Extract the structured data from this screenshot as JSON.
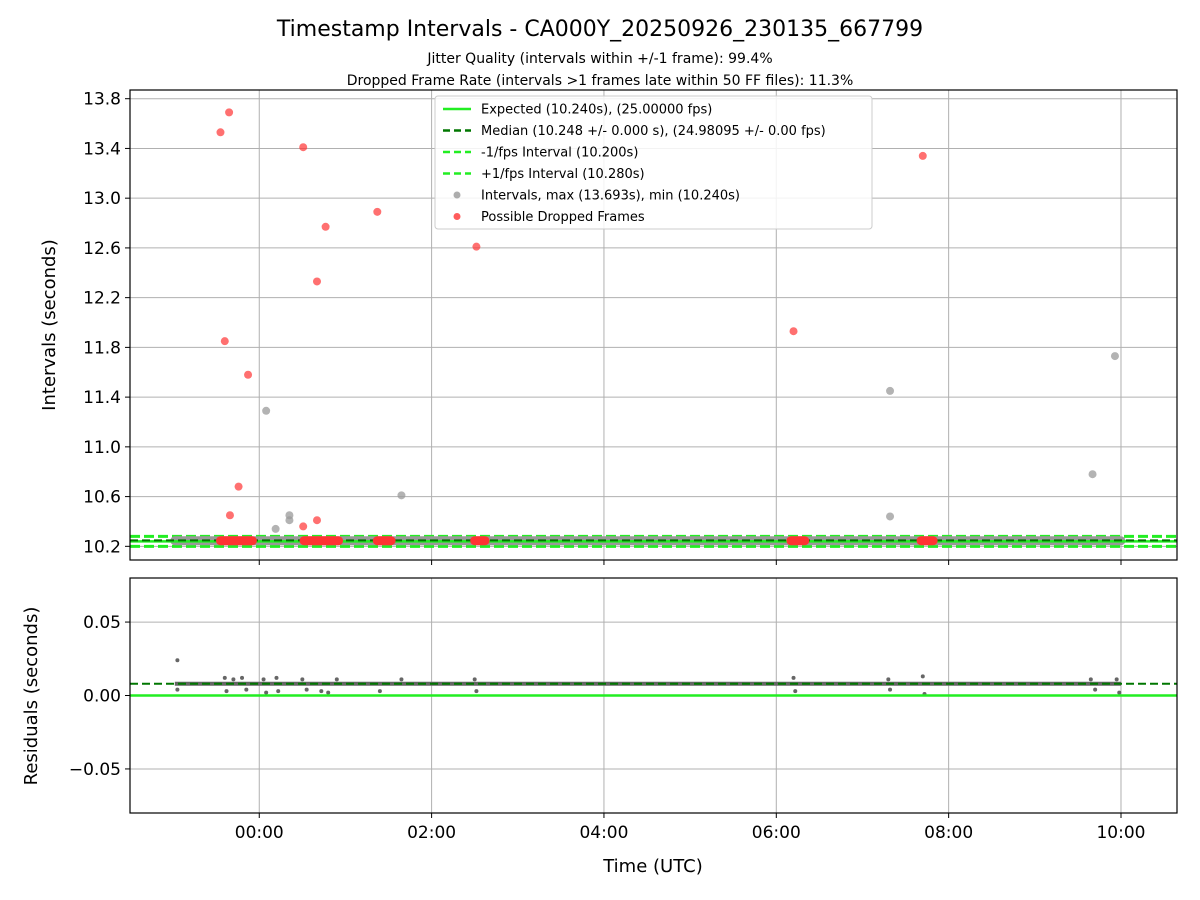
{
  "title": "Timestamp Intervals - CA000Y_20250926_230135_667799",
  "subtitle_jitter": "Jitter Quality (intervals within +/-1 frame): 99.4%",
  "subtitle_dropped": "Dropped Frame Rate (intervals >1 frames late within 50 FF files): 11.3%",
  "colors": {
    "expected": "#22ee22",
    "median": "#007700",
    "fps_band": "#22ee22",
    "intervals": "#999999",
    "dropped": "#ff3333",
    "residuals": "#666666"
  },
  "chart_data": [
    {
      "type": "scatter",
      "xlabel": "",
      "ylabel": "Intervals (seconds)",
      "x_unit": "hours_utc",
      "xlim": [
        -1.5,
        10.65
      ],
      "ylim": [
        10.09,
        13.87
      ],
      "yticks": [
        10.2,
        10.6,
        11.0,
        11.4,
        11.8,
        12.2,
        12.6,
        13.0,
        13.4,
        13.8
      ],
      "ytick_labels": [
        "10.2",
        "10.6",
        "11.0",
        "11.4",
        "11.8",
        "12.2",
        "12.6",
        "13.0",
        "13.4",
        "13.8"
      ],
      "grid": true,
      "legend_position": "top-center",
      "series": [
        {
          "name": "Expected (10.240s), (25.00000 fps)",
          "style": "solid-line",
          "y": 10.24
        },
        {
          "name": "Median (10.248 +/- 0.000 s), (24.98095 +/- 0.00 fps)",
          "style": "dashed-line",
          "y": 10.248
        },
        {
          "name": "-1/fps Interval (10.200s)",
          "style": "dashed-line",
          "y": 10.2
        },
        {
          "name": "+1/fps Interval (10.280s)",
          "style": "dashed-line",
          "y": 10.28
        },
        {
          "name": "Intervals, max (13.693s), min (10.240s)",
          "style": "points",
          "points": [
            [
              0.08,
              11.29
            ],
            [
              0.19,
              10.34
            ],
            [
              0.35,
              10.45
            ],
            [
              0.35,
              10.41
            ],
            [
              1.65,
              10.61
            ],
            [
              7.32,
              11.45
            ],
            [
              7.32,
              10.44
            ],
            [
              9.67,
              10.78
            ],
            [
              9.93,
              11.73
            ]
          ],
          "baseline_runs": [
            [
              -0.98,
              10.0
            ]
          ]
        },
        {
          "name": "Possible Dropped Frames",
          "style": "points",
          "points": [
            [
              -0.45,
              13.53
            ],
            [
              -0.35,
              13.69
            ],
            [
              0.51,
              13.41
            ],
            [
              1.37,
              12.89
            ],
            [
              0.77,
              12.77
            ],
            [
              2.52,
              12.61
            ],
            [
              0.67,
              12.33
            ],
            [
              6.2,
              11.93
            ],
            [
              7.7,
              13.34
            ],
            [
              -0.4,
              11.85
            ],
            [
              -0.13,
              11.58
            ],
            [
              -0.24,
              10.68
            ],
            [
              -0.34,
              10.45
            ],
            [
              0.67,
              10.41
            ],
            [
              0.51,
              10.36
            ]
          ],
          "baseline_runs": [
            [
              -0.45,
              -0.08
            ],
            [
              0.52,
              0.92
            ],
            [
              1.37,
              1.53
            ],
            [
              2.5,
              2.62
            ],
            [
              6.17,
              6.33
            ],
            [
              7.68,
              7.82
            ]
          ]
        }
      ]
    },
    {
      "type": "scatter",
      "xlabel": "Time (UTC)",
      "ylabel": "Residuals (seconds)",
      "xlim": [
        -1.5,
        10.65
      ],
      "ylim": [
        -0.08,
        0.08
      ],
      "xticks": [
        0,
        2,
        4,
        6,
        8,
        10
      ],
      "xtick_labels": [
        "00:00",
        "02:00",
        "04:00",
        "06:00",
        "08:00",
        "10:00"
      ],
      "yticks": [
        -0.05,
        0.0,
        0.05
      ],
      "ytick_labels": [
        "−0.05",
        "0.00",
        "0.05"
      ],
      "grid": true,
      "series": [
        {
          "name": "Expected (10.240s), (25.00000 fps)",
          "style": "solid-line",
          "y": 0.0
        },
        {
          "name": "Median (10.248 +/- 0.000 s), (24.98095 +/- 0.00 fps)",
          "style": "dashed-line",
          "y": 0.008
        },
        {
          "name": "Intervals, max (13.693s), min (10.240s)",
          "style": "points",
          "baseline": 0.008,
          "outliers": [
            [
              -0.95,
              0.024
            ],
            [
              -0.95,
              0.004
            ],
            [
              -0.4,
              0.012
            ],
            [
              -0.38,
              0.003
            ],
            [
              -0.3,
              0.011
            ],
            [
              -0.2,
              0.012
            ],
            [
              -0.15,
              0.004
            ],
            [
              0.05,
              0.011
            ],
            [
              0.08,
              0.002
            ],
            [
              0.2,
              0.012
            ],
            [
              0.22,
              0.003
            ],
            [
              0.5,
              0.011
            ],
            [
              0.55,
              0.004
            ],
            [
              0.72,
              0.003
            ],
            [
              0.8,
              0.002
            ],
            [
              0.9,
              0.011
            ],
            [
              1.4,
              0.003
            ],
            [
              1.65,
              0.011
            ],
            [
              2.5,
              0.011
            ],
            [
              2.52,
              0.003
            ],
            [
              6.2,
              0.012
            ],
            [
              6.22,
              0.003
            ],
            [
              7.3,
              0.011
            ],
            [
              7.32,
              0.004
            ],
            [
              7.7,
              0.013
            ],
            [
              7.72,
              0.001
            ],
            [
              9.65,
              0.011
            ],
            [
              9.7,
              0.004
            ],
            [
              9.95,
              0.011
            ],
            [
              9.98,
              0.002
            ]
          ],
          "baseline_runs": [
            [
              -0.98,
              10.0
            ]
          ]
        }
      ]
    }
  ]
}
